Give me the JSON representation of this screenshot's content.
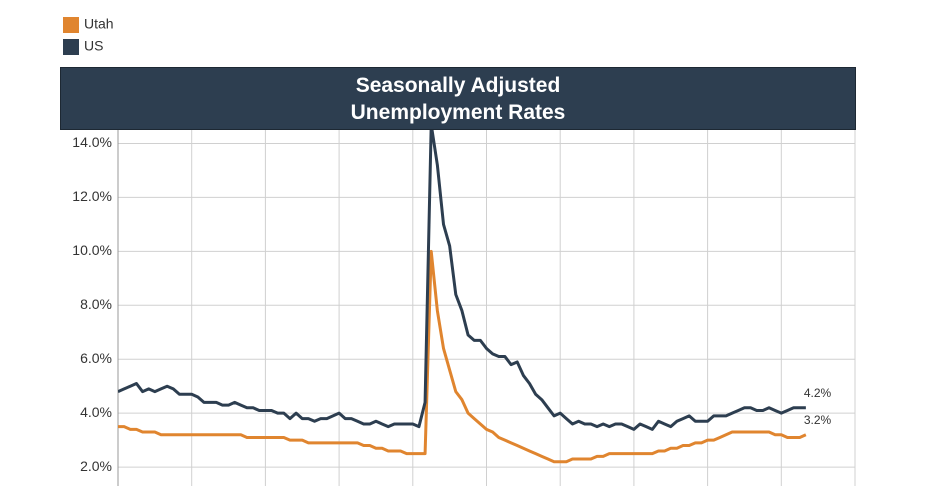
{
  "chart_data": {
    "type": "line",
    "title": "Seasonally Adjusted\nUnemployment Rates",
    "xlim": [
      0,
      120
    ],
    "xticks": [
      0,
      12,
      24,
      36,
      48,
      60,
      72,
      84,
      96,
      108,
      120
    ],
    "ylim": [
      1.3,
      14.5
    ],
    "yticks": [
      {
        "value": 2,
        "label": "2.0%"
      },
      {
        "value": 4,
        "label": "4.0%"
      },
      {
        "value": 6,
        "label": "6.0%"
      },
      {
        "value": 8,
        "label": "8.0%"
      },
      {
        "value": 10,
        "label": "10.0%"
      },
      {
        "value": 12,
        "label": "12.0%"
      },
      {
        "value": 14,
        "label": "14.0%"
      }
    ],
    "grid": true,
    "legend": "top-left",
    "series": [
      {
        "name": "Utah",
        "color": "#e0852f",
        "values": [
          3.5,
          3.5,
          3.4,
          3.4,
          3.3,
          3.3,
          3.3,
          3.2,
          3.2,
          3.2,
          3.2,
          3.2,
          3.2,
          3.2,
          3.2,
          3.2,
          3.2,
          3.2,
          3.2,
          3.2,
          3.2,
          3.1,
          3.1,
          3.1,
          3.1,
          3.1,
          3.1,
          3.1,
          3.0,
          3.0,
          3.0,
          2.9,
          2.9,
          2.9,
          2.9,
          2.9,
          2.9,
          2.9,
          2.9,
          2.9,
          2.8,
          2.8,
          2.7,
          2.7,
          2.6,
          2.6,
          2.6,
          2.5,
          2.5,
          2.5,
          2.5,
          10.0,
          7.8,
          6.4,
          5.6,
          4.8,
          4.5,
          4.0,
          3.8,
          3.6,
          3.4,
          3.3,
          3.1,
          3.0,
          2.9,
          2.8,
          2.7,
          2.6,
          2.5,
          2.4,
          2.3,
          2.2,
          2.2,
          2.2,
          2.3,
          2.3,
          2.3,
          2.3,
          2.4,
          2.4,
          2.5,
          2.5,
          2.5,
          2.5,
          2.5,
          2.5,
          2.5,
          2.5,
          2.6,
          2.6,
          2.7,
          2.7,
          2.8,
          2.8,
          2.9,
          2.9,
          3.0,
          3.0,
          3.1,
          3.2,
          3.3,
          3.3,
          3.3,
          3.3,
          3.3,
          3.3,
          3.3,
          3.2,
          3.2,
          3.1,
          3.1,
          3.1,
          3.2
        ],
        "value_labels": [
          null,
          null,
          null,
          null,
          null,
          null,
          null,
          null,
          null,
          null,
          null,
          null,
          null,
          null,
          null,
          null,
          null,
          null,
          null,
          null,
          null,
          null,
          null,
          null,
          null,
          null,
          null,
          null,
          null,
          null,
          null,
          null,
          null,
          null,
          null,
          null,
          null,
          null,
          null,
          null,
          null,
          null,
          null,
          null,
          null,
          null,
          null,
          null,
          null,
          null,
          null,
          null,
          null,
          null,
          null,
          null,
          null,
          null,
          null,
          null,
          null,
          null,
          null,
          null,
          null,
          null,
          null,
          null,
          null,
          null,
          null,
          null,
          null,
          null,
          null,
          null,
          null,
          null,
          null,
          null,
          null,
          null,
          null,
          null,
          null,
          null,
          null,
          null,
          null,
          null,
          null,
          null,
          null,
          null,
          null,
          null,
          null,
          null,
          null,
          null,
          null,
          null,
          null,
          null,
          null,
          null,
          null,
          null,
          null,
          null,
          null,
          null,
          "3.2%"
        ]
      },
      {
        "name": "US",
        "color": "#2d3e50",
        "values": [
          4.8,
          4.9,
          5.0,
          5.1,
          4.8,
          4.9,
          4.8,
          4.9,
          5.0,
          4.9,
          4.7,
          4.7,
          4.7,
          4.6,
          4.4,
          4.4,
          4.4,
          4.3,
          4.3,
          4.4,
          4.3,
          4.2,
          4.2,
          4.1,
          4.1,
          4.1,
          4.0,
          4.0,
          3.8,
          4.0,
          3.8,
          3.8,
          3.7,
          3.8,
          3.8,
          3.9,
          4.0,
          3.8,
          3.8,
          3.7,
          3.6,
          3.6,
          3.7,
          3.6,
          3.5,
          3.6,
          3.6,
          3.6,
          3.6,
          3.5,
          4.4,
          14.7,
          13.2,
          11.0,
          10.2,
          8.4,
          7.8,
          6.9,
          6.7,
          6.7,
          6.4,
          6.2,
          6.1,
          6.1,
          5.8,
          5.9,
          5.4,
          5.1,
          4.7,
          4.5,
          4.2,
          3.9,
          4.0,
          3.8,
          3.6,
          3.7,
          3.6,
          3.6,
          3.5,
          3.6,
          3.5,
          3.6,
          3.6,
          3.5,
          3.4,
          3.6,
          3.5,
          3.4,
          3.7,
          3.6,
          3.5,
          3.7,
          3.8,
          3.9,
          3.7,
          3.7,
          3.7,
          3.9,
          3.9,
          3.9,
          4.0,
          4.1,
          4.2,
          4.2,
          4.1,
          4.1,
          4.2,
          4.1,
          4.0,
          4.1,
          4.2,
          4.2,
          4.2
        ],
        "value_labels": [
          null,
          null,
          null,
          null,
          null,
          null,
          null,
          null,
          null,
          null,
          null,
          null,
          null,
          null,
          null,
          null,
          null,
          null,
          null,
          null,
          null,
          null,
          null,
          null,
          null,
          null,
          null,
          null,
          null,
          null,
          null,
          null,
          null,
          null,
          null,
          null,
          null,
          null,
          null,
          null,
          null,
          null,
          null,
          null,
          null,
          null,
          null,
          null,
          null,
          null,
          null,
          null,
          null,
          null,
          null,
          null,
          null,
          null,
          null,
          null,
          null,
          null,
          null,
          null,
          null,
          null,
          null,
          null,
          null,
          null,
          null,
          null,
          null,
          null,
          null,
          null,
          null,
          null,
          null,
          null,
          null,
          null,
          null,
          null,
          null,
          null,
          null,
          null,
          null,
          null,
          null,
          null,
          null,
          null,
          null,
          null,
          null,
          null,
          null,
          null,
          null,
          null,
          null,
          null,
          null,
          null,
          null,
          null,
          null,
          null,
          null,
          null,
          "4.2%"
        ]
      }
    ]
  }
}
